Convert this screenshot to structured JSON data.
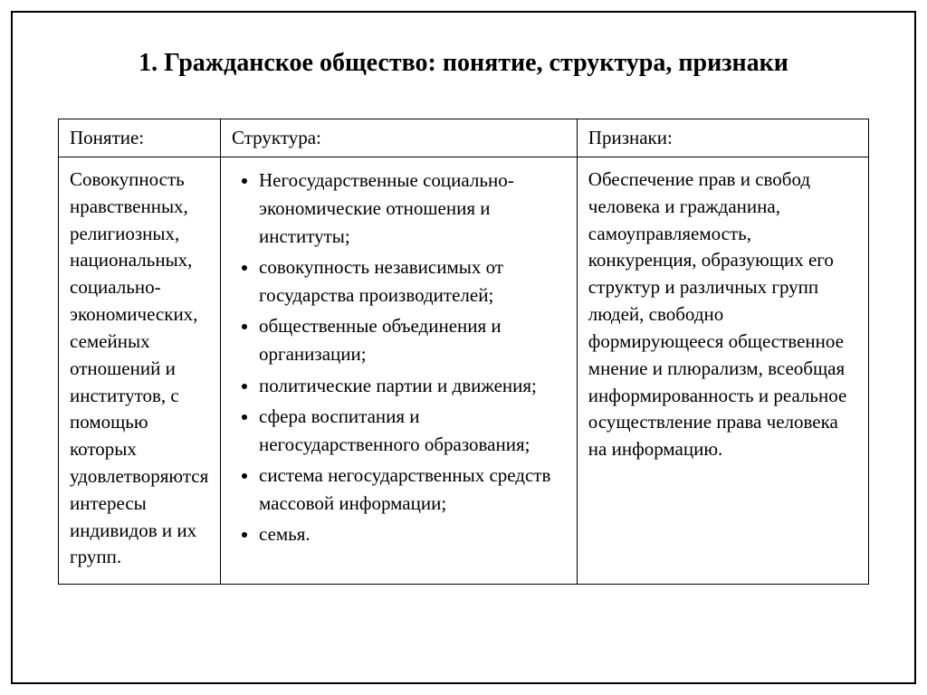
{
  "title": "1. Гражданское общество: понятие, структура, признаки",
  "table": {
    "headers": {
      "col1": "Понятие:",
      "col2": "Структура:",
      "col3": "Признаки:"
    },
    "body": {
      "col1": "Совокупность нравственных, религиозных, национальных, социально-экономических, семейных отношений и институтов, с помощью которых удовлетворяются интересы индивидов и их групп.",
      "col2_items": [
        "Негосударственные социально-экономические отношения и институты;",
        "совокупность независимых от государства производителей;",
        "общественные объединения и организации;",
        "политические партии и движения;",
        "сфера воспитания и негосударственного образования;",
        "система негосударственных средств массовой информации;",
        "семья."
      ],
      "col3": "Обеспечение прав и свобод человека и гражданина, самоуправляемость, конкуренция, образующих его структур и различных групп людей, свободно формирующееся общественное мнение и плюрализм, всеобщая информированность и реальное осуществление права человека на информацию."
    }
  },
  "styling": {
    "font_family": "Times New Roman",
    "title_fontsize": 28,
    "title_fontweight": "bold",
    "header_fontsize": 21,
    "body_fontsize": 21,
    "border_color": "#000000",
    "background_color": "#ffffff",
    "text_color": "#000000",
    "col_widths": [
      "20%",
      "44%",
      "36%"
    ],
    "list_style": "disc"
  }
}
